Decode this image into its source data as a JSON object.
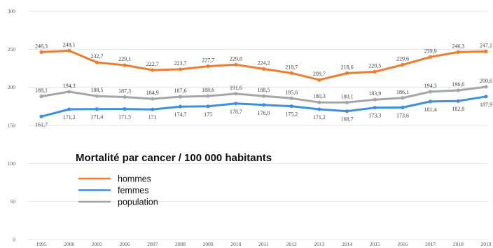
{
  "chart_data": {
    "type": "line",
    "title": "Mortalité par cancer / 100 000 habitants",
    "categories": [
      "1995",
      "2000",
      "2005",
      "2006",
      "2007",
      "2008",
      "2009",
      "2010",
      "2011",
      "2012",
      "2013",
      "2014",
      "2015",
      "2016",
      "2017",
      "2018",
      "2019"
    ],
    "ylim": [
      0,
      300
    ],
    "yticks": [
      0,
      50,
      100,
      150,
      200,
      250,
      300
    ],
    "grid": true,
    "legend_position": "center-left",
    "series": [
      {
        "name": "hommes",
        "color": "#ed7d31",
        "values": [
          246.3,
          248.1,
          232.7,
          229.1,
          222.7,
          223.7,
          227.7,
          229.8,
          224.2,
          218.7,
          209.7,
          218.6,
          220.5,
          229.6,
          239.9,
          246.3,
          247.1
        ],
        "labels": [
          "246,3",
          "248,1",
          "232,7",
          "229,1",
          "222,7",
          "223,7",
          "227,7",
          "229,8",
          "224,2",
          "218,7",
          "209,7",
          "218,6",
          "220,5",
          "229,6",
          "239,9",
          "246,3",
          "247,1"
        ]
      },
      {
        "name": "femmes",
        "color": "#3d8fe0",
        "values": [
          161.7,
          171.2,
          171.4,
          171.5,
          171,
          174.7,
          175,
          178.7,
          176.9,
          175.2,
          171.2,
          168.7,
          173.3,
          173.6,
          181.4,
          182.0,
          187.9
        ],
        "labels": [
          "161,7",
          "171,2",
          "171,4",
          "171,5",
          "171",
          "174,7",
          "175",
          "178,7",
          "176,9",
          "175,2",
          "171,2",
          "168,7",
          "173,3",
          "173,6",
          "181,4",
          "182,0",
          "187,9"
        ]
      },
      {
        "name": "population",
        "color": "#a6a6a6",
        "values": [
          188.1,
          194.3,
          188.5,
          187.3,
          184.9,
          187.6,
          188.6,
          191.6,
          188.5,
          185.6,
          180.3,
          180.1,
          183.9,
          186.1,
          194.3,
          196.0,
          200.6
        ],
        "labels": [
          "188,1",
          "194,3",
          "188,5",
          "187,3",
          "184,9",
          "187,6",
          "188,6",
          "191,6",
          "188,5",
          "185,6",
          "180,3",
          "180,1",
          "183,9",
          "186,1",
          "194,3",
          "196,0",
          "200,6"
        ]
      }
    ]
  }
}
